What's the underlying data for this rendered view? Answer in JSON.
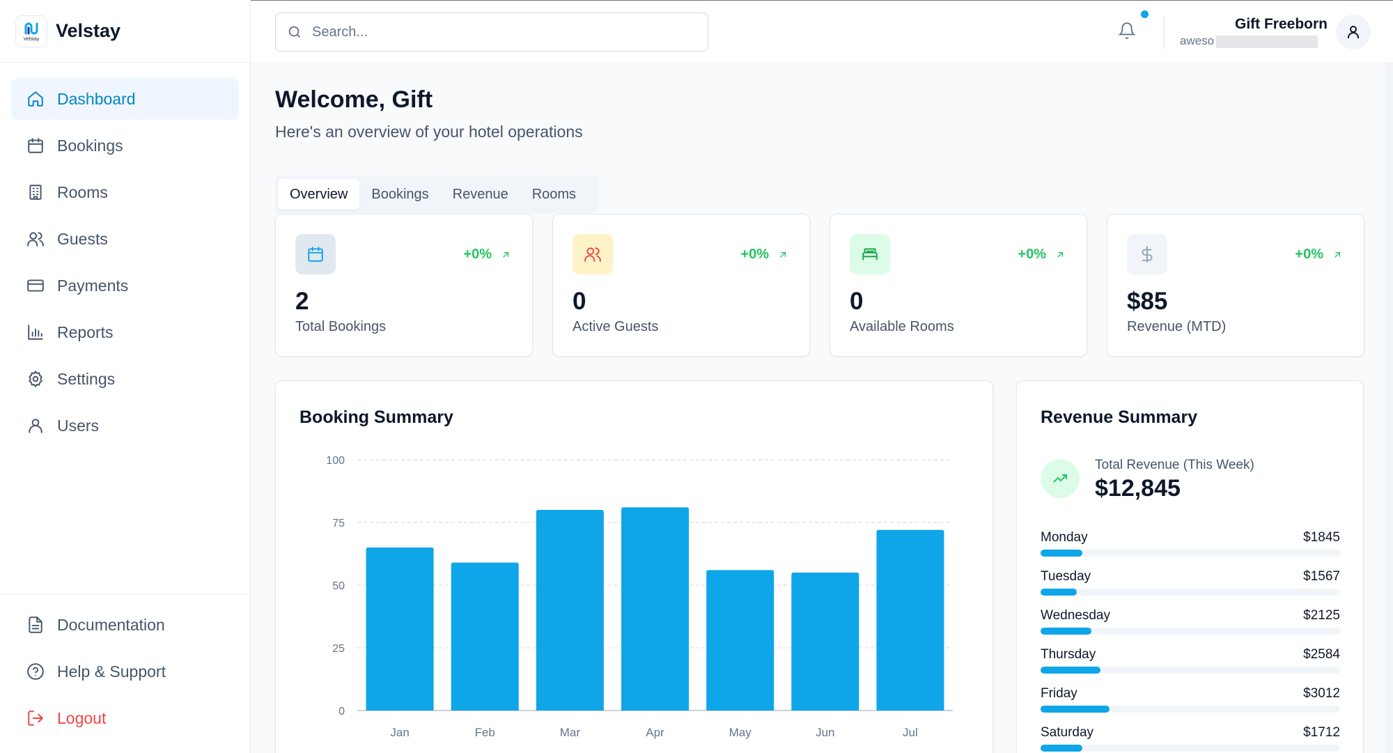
{
  "brand": {
    "name": "Velstay",
    "logo_text": "Velstay"
  },
  "sidebar": {
    "items": [
      {
        "label": "Dashboard",
        "icon": "home-icon",
        "active": true
      },
      {
        "label": "Bookings",
        "icon": "calendar-icon"
      },
      {
        "label": "Rooms",
        "icon": "building-icon"
      },
      {
        "label": "Guests",
        "icon": "users-icon"
      },
      {
        "label": "Payments",
        "icon": "credit-card-icon"
      },
      {
        "label": "Reports",
        "icon": "bar-chart-icon"
      },
      {
        "label": "Settings",
        "icon": "gear-icon"
      },
      {
        "label": "Users",
        "icon": "user-icon"
      }
    ],
    "bottom_items": [
      {
        "label": "Documentation",
        "icon": "document-icon"
      },
      {
        "label": "Help & Support",
        "icon": "help-circle-icon"
      },
      {
        "label": "Logout",
        "icon": "logout-icon"
      }
    ]
  },
  "header": {
    "search_placeholder": "Search...",
    "user_name": "Gift Freeborn",
    "user_email_visible": "aweso"
  },
  "main": {
    "welcome": "Welcome, Gift",
    "subtitle": "Here's an overview of your hotel operations",
    "tabs": [
      "Overview",
      "Bookings",
      "Revenue",
      "Rooms"
    ],
    "active_tab": "Overview"
  },
  "stats": [
    {
      "value": "2",
      "label": "Total Bookings",
      "change": "+0%",
      "icon": "calendar-icon",
      "icon_bg": "#e2e8f0",
      "icon_color": "#0ea5e9"
    },
    {
      "value": "0",
      "label": "Active Guests",
      "change": "+0%",
      "icon": "users-icon",
      "icon_bg": "#fef3c7",
      "icon_color": "#ef4444"
    },
    {
      "value": "0",
      "label": "Available Rooms",
      "change": "+0%",
      "icon": "bed-icon",
      "icon_bg": "#dcfce7",
      "icon_color": "#16a34a"
    },
    {
      "value": "$85",
      "label": "Revenue (MTD)",
      "change": "+0%",
      "icon": "dollar-icon",
      "icon_bg": "#f1f5f9",
      "icon_color": "#94a3b8"
    }
  ],
  "booking_summary": {
    "title": "Booking Summary"
  },
  "chart_data": {
    "type": "bar",
    "categories": [
      "Jan",
      "Feb",
      "Mar",
      "Apr",
      "May",
      "Jun",
      "Jul"
    ],
    "values": [
      65,
      59,
      80,
      81,
      56,
      55,
      72
    ],
    "title": "Booking Summary",
    "xlabel": "",
    "ylabel": "",
    "ylim": [
      0,
      100
    ],
    "yticks": [
      0,
      25,
      50,
      75,
      100
    ],
    "grid": true,
    "color": "#0ea5e9"
  },
  "revenue_summary": {
    "title": "Revenue Summary",
    "total_label": "Total Revenue (This Week)",
    "total": "$12,845",
    "days": [
      {
        "day": "Monday",
        "amount": "$1845",
        "fraction": 0.14
      },
      {
        "day": "Tuesday",
        "amount": "$1567",
        "fraction": 0.12
      },
      {
        "day": "Wednesday",
        "amount": "$2125",
        "fraction": 0.17
      },
      {
        "day": "Thursday",
        "amount": "$2584",
        "fraction": 0.2
      },
      {
        "day": "Friday",
        "amount": "$3012",
        "fraction": 0.23
      },
      {
        "day": "Saturday",
        "amount": "$1712",
        "fraction": 0.14
      }
    ]
  },
  "colors": {
    "accent": "#0ea5e9",
    "positive": "#22c55e",
    "danger": "#ef4444"
  }
}
